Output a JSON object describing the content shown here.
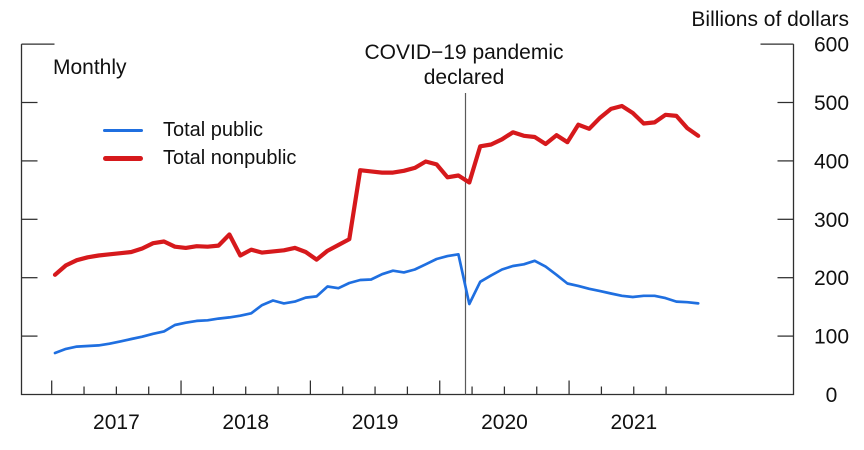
{
  "chart_data": {
    "type": "line",
    "unit_label": "Billions of dollars",
    "frequency_label": "Monthly",
    "ylim": [
      0,
      600
    ],
    "y_ticks": [
      0,
      100,
      200,
      300,
      400,
      500,
      600
    ],
    "x_year_labels": [
      "2017",
      "2018",
      "2019",
      "2020",
      "2021"
    ],
    "legend_position": "top-left-inside",
    "grid": false,
    "axis_color": "#2f2f2f",
    "annotation": {
      "line1": "COVID−19 pandemic",
      "line2": "declared",
      "date": "2020-03",
      "line_color": "#5a5a5a"
    },
    "x_monthly": [
      "2017-01",
      "2017-02",
      "2017-03",
      "2017-04",
      "2017-05",
      "2017-06",
      "2017-07",
      "2017-08",
      "2017-09",
      "2017-10",
      "2017-11",
      "2017-12",
      "2018-01",
      "2018-02",
      "2018-03",
      "2018-04",
      "2018-05",
      "2018-06",
      "2018-07",
      "2018-08",
      "2018-09",
      "2018-10",
      "2018-11",
      "2018-12",
      "2019-01",
      "2019-02",
      "2019-03",
      "2019-04",
      "2019-05",
      "2019-06",
      "2019-07",
      "2019-08",
      "2019-09",
      "2019-10",
      "2019-11",
      "2019-12",
      "2020-01",
      "2020-02",
      "2020-03",
      "2020-04",
      "2020-05",
      "2020-06",
      "2020-07",
      "2020-08",
      "2020-09",
      "2020-10",
      "2020-11",
      "2020-12",
      "2021-01",
      "2021-02",
      "2021-03",
      "2021-04",
      "2021-05",
      "2021-06",
      "2021-07",
      "2021-08",
      "2021-09",
      "2021-10",
      "2021-11",
      "2021-12"
    ],
    "series": [
      {
        "name": "Total public",
        "color": "#1f6fe0",
        "values": [
          71,
          78,
          82,
          83,
          84,
          87,
          91,
          95,
          99,
          104,
          108,
          119,
          123,
          126,
          127,
          130,
          132,
          135,
          139,
          153,
          161,
          156,
          159,
          166,
          168,
          185,
          182,
          191,
          196,
          197,
          206,
          212,
          209,
          214,
          223,
          232,
          237,
          240,
          155,
          193,
          204,
          214,
          220,
          223,
          229,
          219,
          205,
          190,
          186,
          181,
          177,
          173,
          169,
          167,
          169,
          169,
          165,
          159,
          158,
          156
        ]
      },
      {
        "name": "Total nonpublic",
        "color": "#d6191c",
        "values": [
          205,
          221,
          230,
          235,
          238,
          240,
          242,
          244,
          250,
          259,
          262,
          253,
          251,
          254,
          253,
          255,
          274,
          238,
          248,
          243,
          245,
          247,
          251,
          244,
          231,
          246,
          256,
          266,
          384,
          382,
          380,
          380,
          383,
          388,
          399,
          394,
          372,
          375,
          363,
          425,
          428,
          437,
          449,
          443,
          441,
          429,
          444,
          432,
          462,
          455,
          474,
          489,
          494,
          482,
          464,
          466,
          479,
          477,
          456,
          443
        ]
      }
    ]
  }
}
